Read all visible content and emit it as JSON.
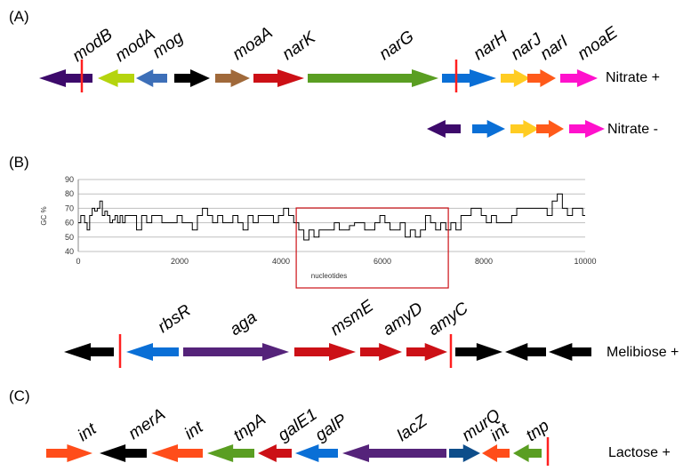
{
  "panel_a": {
    "label": "(A)",
    "genes": [
      {
        "name": "modB",
        "color": "#3d0a6b",
        "dir": "left"
      },
      {
        "name": "modA",
        "color": "#b5d40e",
        "dir": "left"
      },
      {
        "name": "mog",
        "color": "#3d6fb8",
        "dir": "left"
      },
      {
        "name": "",
        "color": "#000000",
        "dir": "right"
      },
      {
        "name": "moaA",
        "color": "#a0693a",
        "dir": "right"
      },
      {
        "name": "narK",
        "color": "#cc1016",
        "dir": "right"
      },
      {
        "name": "narG",
        "color": "#5a9e22",
        "dir": "right"
      },
      {
        "name": "narH",
        "color": "#0a6fd6",
        "dir": "right"
      },
      {
        "name": "narJ",
        "color": "#ffcc22",
        "dir": "right"
      },
      {
        "name": "narI",
        "color": "#ff5a1a",
        "dir": "right"
      },
      {
        "name": "moaE",
        "color": "#ff11cc",
        "dir": "right"
      }
    ],
    "row1_phenotype": "Nitrate +",
    "row2_phenotype": "Nitrate -"
  },
  "panel_b": {
    "label": "(B)",
    "genes": [
      {
        "name": "",
        "color": "#000000",
        "dir": "left"
      },
      {
        "name": "rbsR",
        "color": "#0a6fd6",
        "dir": "left"
      },
      {
        "name": "aga",
        "color": "#55237a",
        "dir": "right"
      },
      {
        "name": "msmE",
        "color": "#cc1016",
        "dir": "right"
      },
      {
        "name": "amyD",
        "color": "#cc1016",
        "dir": "right"
      },
      {
        "name": "amyC",
        "color": "#cc1016",
        "dir": "right"
      },
      {
        "name": "",
        "color": "#000000",
        "dir": "right"
      },
      {
        "name": "",
        "color": "#000000",
        "dir": "left"
      },
      {
        "name": "",
        "color": "#000000",
        "dir": "left"
      }
    ],
    "phenotype": "Melibiose +"
  },
  "panel_c": {
    "label": "(C)",
    "genes": [
      {
        "name": "int",
        "color": "#ff4d1a",
        "dir": "right"
      },
      {
        "name": "merA",
        "color": "#000000",
        "dir": "left"
      },
      {
        "name": "int",
        "color": "#ff4d1a",
        "dir": "left"
      },
      {
        "name": "tnpA",
        "color": "#5a9e22",
        "dir": "left"
      },
      {
        "name": "galE1",
        "color": "#cc1016",
        "dir": "left"
      },
      {
        "name": "galP",
        "color": "#0a6fd6",
        "dir": "left"
      },
      {
        "name": "lacZ",
        "color": "#55237a",
        "dir": "left"
      },
      {
        "name": "murQ",
        "color": "#0d4d8a",
        "dir": "right"
      },
      {
        "name": "int",
        "color": "#ff4d1a",
        "dir": "left"
      },
      {
        "name": "tnp",
        "color": "#5a9e22",
        "dir": "left"
      }
    ],
    "phenotype": "Lactose +"
  },
  "marker_color": "#ff2020",
  "chart_data": {
    "type": "line",
    "title": "",
    "xlabel": "nucleotides",
    "ylabel": "GC %",
    "xlim": [
      0,
      10000
    ],
    "ylim": [
      40,
      90
    ],
    "xticks": [
      0,
      2000,
      4000,
      6000,
      8000,
      10000
    ],
    "yticks": [
      40,
      50,
      60,
      70,
      80,
      90
    ],
    "grid": "horizontal",
    "highlight_region": [
      4300,
      7300
    ],
    "series": [
      {
        "x": [
          0,
          100,
          150,
          200,
          250,
          300,
          350,
          400,
          450,
          500,
          550,
          600,
          650,
          700,
          750,
          800,
          850,
          900,
          950,
          1000,
          1100,
          1200,
          1300,
          1400,
          1500,
          1600,
          1700,
          1800,
          1900,
          2000,
          2100,
          2200,
          2300,
          2400,
          2500,
          2600,
          2700,
          2800,
          2900,
          3000,
          3100,
          3200,
          3300,
          3400,
          3500,
          3600,
          3700,
          3800,
          3900,
          4000,
          4100,
          4200,
          4300,
          4400,
          4500,
          4600,
          4700,
          4800,
          4900,
          5000,
          5100,
          5200,
          5300,
          5400,
          5500,
          5600,
          5700,
          5800,
          5900,
          6000,
          6100,
          6200,
          6300,
          6400,
          6500,
          6600,
          6700,
          6800,
          6900,
          7000,
          7100,
          7200,
          7300,
          7400,
          7500,
          7600,
          7700,
          7800,
          7900,
          8000,
          8100,
          8200,
          8300,
          8400,
          8500,
          8600,
          8700,
          8800,
          8900,
          9000,
          9100,
          9200,
          9300,
          9400,
          9500,
          9600,
          9700,
          9800,
          9900,
          10000
        ],
        "y": [
          60,
          65,
          60,
          55,
          65,
          70,
          68,
          70,
          75,
          65,
          68,
          65,
          60,
          62,
          65,
          60,
          65,
          60,
          65,
          65,
          65,
          55,
          65,
          60,
          65,
          65,
          60,
          60,
          60,
          65,
          60,
          60,
          55,
          65,
          70,
          65,
          60,
          65,
          60,
          60,
          65,
          60,
          55,
          65,
          60,
          65,
          65,
          65,
          60,
          65,
          70,
          65,
          60,
          55,
          48,
          55,
          50,
          55,
          55,
          55,
          60,
          55,
          55,
          58,
          60,
          60,
          55,
          55,
          60,
          65,
          60,
          55,
          55,
          60,
          50,
          55,
          50,
          55,
          65,
          60,
          55,
          60,
          55,
          60,
          55,
          65,
          65,
          70,
          70,
          65,
          60,
          65,
          60,
          60,
          60,
          65,
          70,
          70,
          70,
          70,
          70,
          70,
          65,
          75,
          80,
          70,
          65,
          70,
          70,
          65
        ]
      }
    ]
  }
}
